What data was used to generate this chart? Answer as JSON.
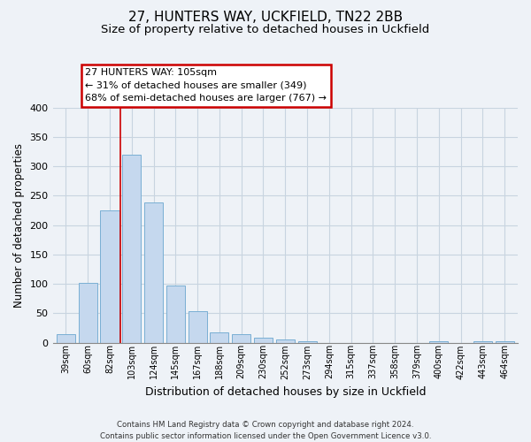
{
  "title1": "27, HUNTERS WAY, UCKFIELD, TN22 2BB",
  "title2": "Size of property relative to detached houses in Uckfield",
  "xlabel": "Distribution of detached houses by size in Uckfield",
  "ylabel": "Number of detached properties",
  "bar_labels": [
    "39sqm",
    "60sqm",
    "82sqm",
    "103sqm",
    "124sqm",
    "145sqm",
    "167sqm",
    "188sqm",
    "209sqm",
    "230sqm",
    "252sqm",
    "273sqm",
    "294sqm",
    "315sqm",
    "337sqm",
    "358sqm",
    "379sqm",
    "400sqm",
    "422sqm",
    "443sqm",
    "464sqm"
  ],
  "bar_values": [
    14,
    102,
    225,
    320,
    238,
    97,
    54,
    17,
    14,
    8,
    5,
    2,
    0,
    0,
    0,
    0,
    0,
    2,
    0,
    2,
    2
  ],
  "bar_color": "#c5d8ee",
  "bar_edge_color": "#7aafd4",
  "highlight_box_line1": "27 HUNTERS WAY: 105sqm",
  "highlight_box_line2": "← 31% of detached houses are smaller (349)",
  "highlight_box_line3": "68% of semi-detached houses are larger (767) →",
  "property_line_x": 2.5,
  "ylim": [
    0,
    400
  ],
  "yticks": [
    0,
    50,
    100,
    150,
    200,
    250,
    300,
    350,
    400
  ],
  "grid_color": "#c8d4e0",
  "bg_color": "#eef2f7",
  "footer_line1": "Contains HM Land Registry data © Crown copyright and database right 2024.",
  "footer_line2": "Contains public sector information licensed under the Open Government Licence v3.0.",
  "title1_fontsize": 11,
  "title2_fontsize": 9.5,
  "xlabel_fontsize": 9,
  "ylabel_fontsize": 8.5
}
